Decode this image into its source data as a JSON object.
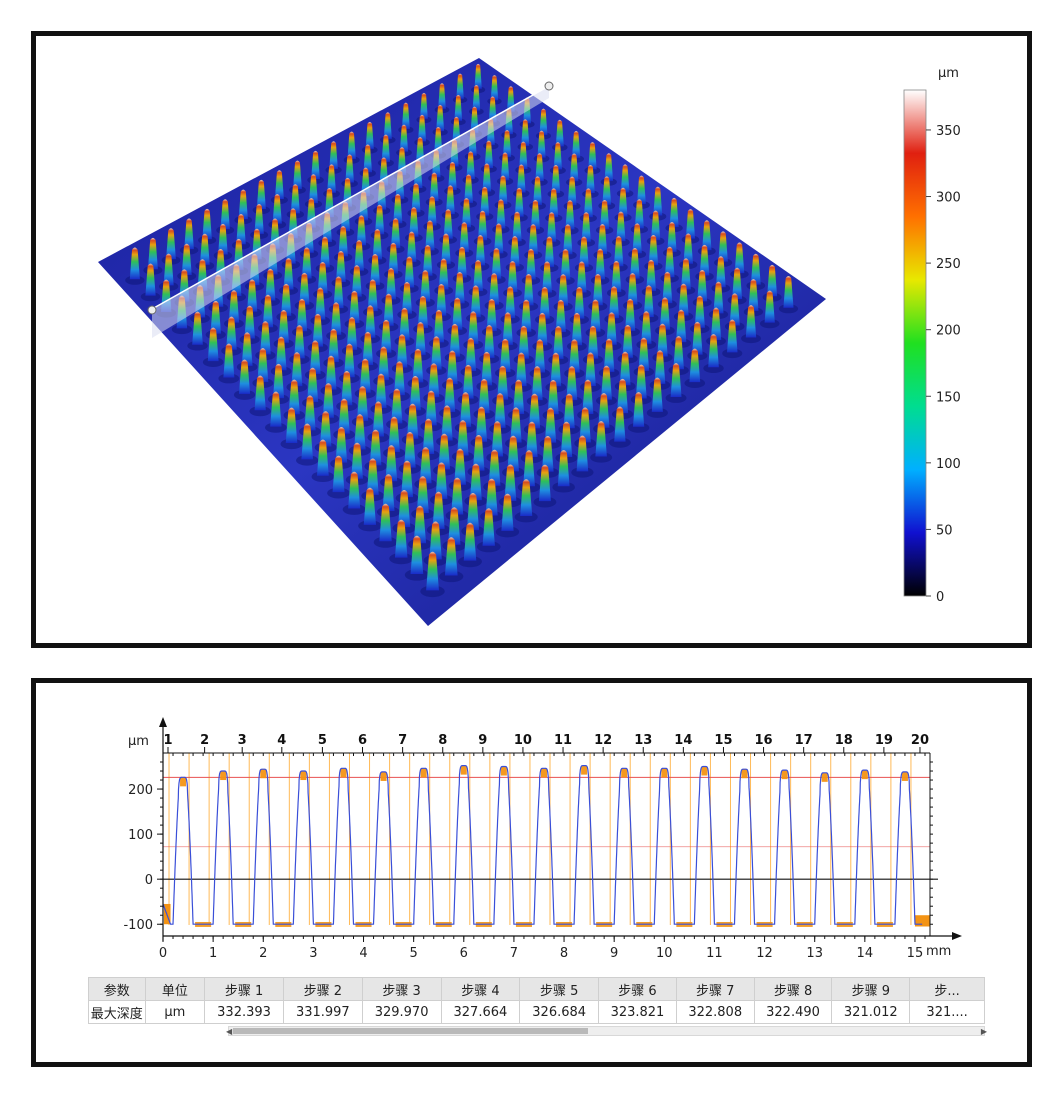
{
  "chart_data": [
    {
      "type": "surface3d",
      "unit": "µm",
      "colorbar": {
        "ticks": [
          0,
          50,
          100,
          150,
          200,
          250,
          300,
          350
        ],
        "range": [
          0,
          380
        ],
        "colors": [
          "#000000",
          "#1010d0",
          "#00b0ff",
          "#00dd90",
          "#20e020",
          "#e8e800",
          "#ff7000",
          "#e02010",
          "#ffffff"
        ]
      },
      "grid": "20x20 array of conical pillars",
      "colors": {
        "base": "#1a23a8",
        "pillar_low": "#1f6de0",
        "pillar_mid": "#2fbf58",
        "pillar_high": "#f07a12",
        "pillar_top": "#d8c0b8"
      }
    },
    {
      "type": "line",
      "y_unit": "µm",
      "x_unit": "mm",
      "xlim": [
        0,
        15.3
      ],
      "ylim": [
        -115,
        280
      ],
      "x_ticks": [
        0,
        1,
        2,
        3,
        4,
        5,
        6,
        7,
        8,
        9,
        10,
        11,
        12,
        13,
        14,
        15
      ],
      "y_ticks": [
        -100,
        0,
        100,
        200
      ],
      "step_labels": [
        "1",
        "2",
        "3",
        "4",
        "5",
        "6",
        "7",
        "8",
        "9",
        "10",
        "11",
        "12",
        "13",
        "14",
        "15",
        "16",
        "17",
        "18",
        "19",
        "20"
      ],
      "step_x_positions": [
        0.1,
        0.83,
        1.58,
        2.37,
        3.18,
        3.98,
        4.78,
        5.58,
        6.38,
        7.18,
        7.98,
        8.78,
        9.58,
        10.38,
        11.18,
        11.98,
        12.78,
        13.58,
        14.38,
        15.1
      ],
      "peaks_x": [
        0.4,
        1.2,
        2.0,
        2.8,
        3.6,
        4.4,
        5.2,
        6.0,
        6.8,
        7.6,
        8.4,
        9.2,
        10.0,
        10.8,
        11.6,
        12.4,
        13.2,
        14.0,
        14.8
      ],
      "peaks_y": [
        226,
        240,
        244,
        240,
        246,
        238,
        246,
        252,
        250,
        246,
        252,
        246,
        246,
        250,
        244,
        242,
        236,
        242,
        238
      ],
      "valley_y": -100,
      "reference_lines": {
        "upper": 226,
        "lower": 72,
        "zero": 0
      },
      "colors": {
        "profile": "#3a4fd8",
        "fill": "#f39314",
        "reference": "#e85050",
        "grid": "#ffae3a"
      }
    },
    {
      "type": "table",
      "columns": [
        "参数",
        "单位",
        "步骤 1",
        "步骤 2",
        "步骤 3",
        "步骤 4",
        "步骤 5",
        "步骤 6",
        "步骤 7",
        "步骤 8",
        "步骤 9",
        "步..."
      ],
      "rows": [
        [
          "最大深度",
          "µm",
          "332.393",
          "331.997",
          "329.970",
          "327.664",
          "326.684",
          "323.821",
          "322.808",
          "322.490",
          "321.012",
          "321...."
        ]
      ]
    }
  ]
}
